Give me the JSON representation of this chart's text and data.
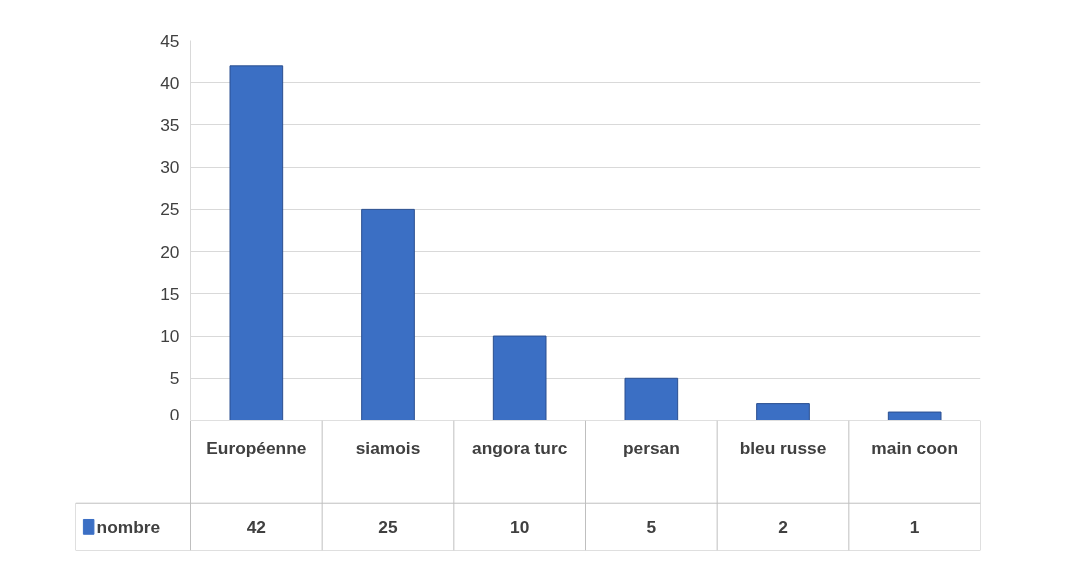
{
  "chart_data": {
    "type": "bar",
    "categories": [
      "Européenne",
      "siamois",
      "angora turc",
      "persan",
      "bleu russe",
      "main coon"
    ],
    "series": [
      {
        "name": "nombre",
        "color": "#3b6fc4",
        "values": [
          42,
          25,
          10,
          5,
          2,
          1
        ]
      }
    ],
    "ylim": [
      0,
      45
    ],
    "yticks": [
      0,
      5,
      10,
      15,
      20,
      25,
      30,
      35,
      40,
      45
    ],
    "grid": "y",
    "legend": "bottom",
    "data_labels": true
  }
}
